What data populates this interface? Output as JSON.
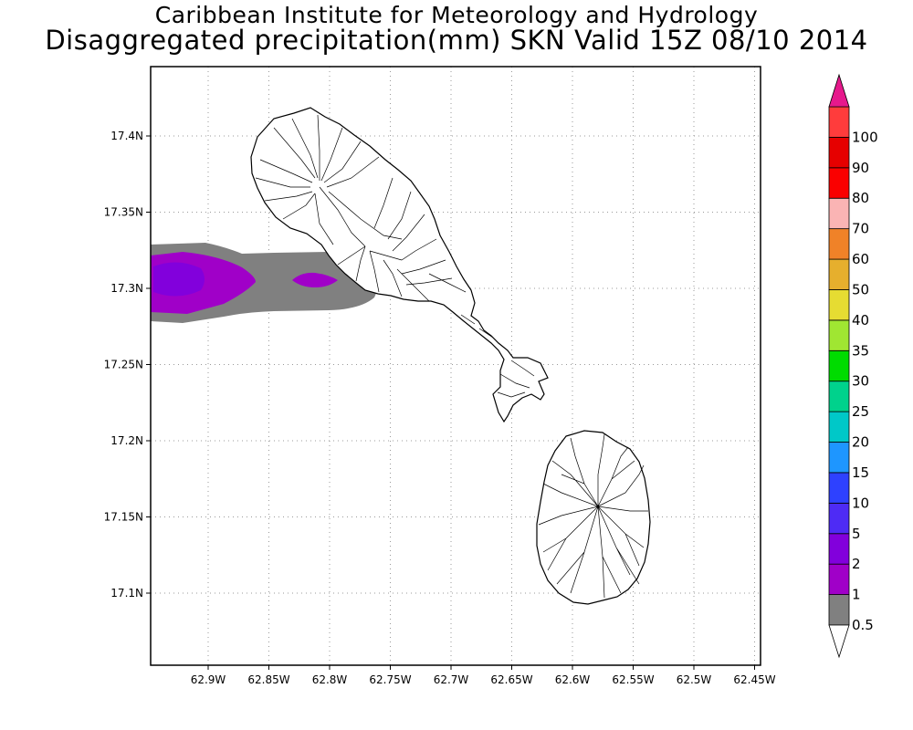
{
  "map": {
    "title_line1": "Caribbean Institute for Meteorology and Hydrology",
    "title_line2": "Disaggregated precipitation(mm) SKN Valid 15Z 08/10 2014",
    "x_ticks": [
      "62.9W",
      "62.85W",
      "62.8W",
      "62.75W",
      "62.7W",
      "62.65W",
      "62.6W",
      "62.55W",
      "62.5W",
      "62.45W"
    ],
    "y_ticks": [
      "17.4N",
      "17.35N",
      "17.3N",
      "17.25N",
      "17.2N",
      "17.15N",
      "17.1N"
    ],
    "grid": "dotted"
  },
  "legend": {
    "orientation": "vertical",
    "placement": "right",
    "bins": [
      {
        "label": "0.5",
        "color": "#808080"
      },
      {
        "label": "1",
        "color": "#a000c8"
      },
      {
        "label": "2",
        "color": "#8200dc"
      },
      {
        "label": "5",
        "color": "#4e2bf5"
      },
      {
        "label": "10",
        "color": "#2e41ff"
      },
      {
        "label": "15",
        "color": "#1e96ff"
      },
      {
        "label": "20",
        "color": "#00c8c8"
      },
      {
        "label": "25",
        "color": "#00d28c"
      },
      {
        "label": "30",
        "color": "#00dc00"
      },
      {
        "label": "35",
        "color": "#a0e632"
      },
      {
        "label": "40",
        "color": "#e6dc32"
      },
      {
        "label": "50",
        "color": "#e6af2d"
      },
      {
        "label": "60",
        "color": "#f08228"
      },
      {
        "label": "70",
        "color": "#fab4b4"
      },
      {
        "label": "80",
        "color": "#fa0000"
      },
      {
        "label": "90",
        "color": "#e60000"
      },
      {
        "label": "100",
        "color": "#ff3c3c"
      }
    ],
    "top_arrow_color": "#e6198c",
    "bottom_arrow_color": "#ffffff"
  },
  "precip_colors": {
    "gray": "#808080",
    "purple": "#a000c8",
    "violet": "#8200dc"
  }
}
